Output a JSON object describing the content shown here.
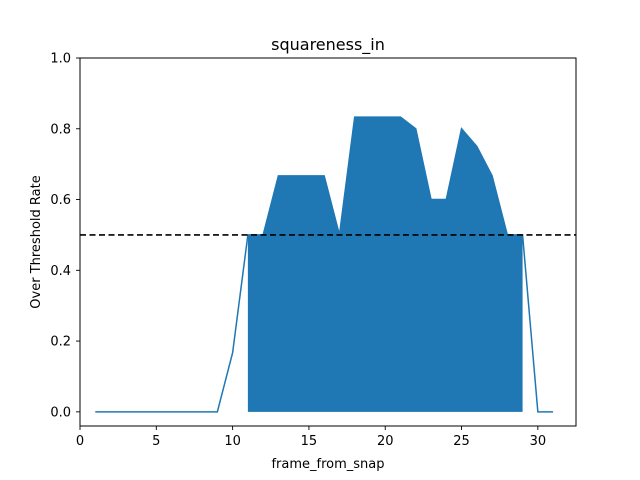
{
  "chart_data": {
    "type": "area",
    "title": "squareness_in",
    "xlabel": "frame_from_snap",
    "ylabel": "Over Threshold Rate",
    "xlim": [
      0,
      32.5
    ],
    "ylim": [
      -0.04,
      1.0
    ],
    "xticks": [
      0,
      5,
      10,
      15,
      20,
      25,
      30
    ],
    "yticks": [
      0.0,
      0.2,
      0.4,
      0.6,
      0.8,
      1.0
    ],
    "xtick_labels": [
      "0",
      "5",
      "10",
      "15",
      "20",
      "25",
      "30"
    ],
    "ytick_labels": [
      "0.0",
      "0.2",
      "0.4",
      "0.6",
      "0.8",
      "1.0"
    ],
    "threshold": 0.5,
    "series": [
      {
        "color": "#1f77b4",
        "x": [
          1,
          2,
          3,
          4,
          5,
          6,
          7,
          8,
          9,
          10,
          11,
          12,
          13,
          14,
          15,
          16,
          17,
          18,
          19,
          20,
          21,
          22,
          23,
          24,
          25,
          26,
          27,
          28,
          29,
          30,
          31
        ],
        "y": [
          0,
          0,
          0,
          0,
          0,
          0,
          0,
          0,
          0,
          0.167,
          0.5,
          0.5,
          0.667,
          0.667,
          0.667,
          0.667,
          0.5,
          0.833,
          0.833,
          0.833,
          0.833,
          0.8,
          0.6,
          0.6,
          0.8,
          0.75,
          0.667,
          0.5,
          0.5,
          0,
          0
        ]
      }
    ],
    "fill": {
      "color": "#1f77b4",
      "x_start": 11,
      "x_end": 29
    },
    "threshold_color": "#000000",
    "grid": false
  }
}
